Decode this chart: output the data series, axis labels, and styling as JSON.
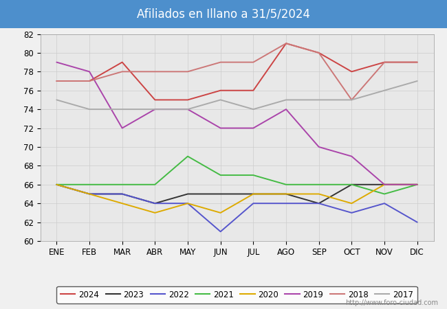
{
  "title": "Afiliados en Illano a 31/5/2024",
  "title_bg": "#4d8fcc",
  "title_color": "white",
  "ylim": [
    60,
    82
  ],
  "yticks": [
    60,
    62,
    64,
    66,
    68,
    70,
    72,
    74,
    76,
    78,
    80,
    82
  ],
  "months": [
    "ENE",
    "FEB",
    "MAR",
    "ABR",
    "MAY",
    "JUN",
    "JUL",
    "AGO",
    "SEP",
    "OCT",
    "NOV",
    "DIC"
  ],
  "series": {
    "2024": {
      "color": "#cc4444",
      "data": [
        77,
        77,
        79,
        75,
        75,
        76,
        76,
        81,
        80,
        78,
        79,
        79
      ]
    },
    "2023": {
      "color": "#333333",
      "data": [
        66,
        65,
        65,
        64,
        65,
        65,
        65,
        65,
        64,
        66,
        66,
        66
      ]
    },
    "2022": {
      "color": "#5555cc",
      "data": [
        66,
        65,
        65,
        64,
        64,
        61,
        64,
        64,
        64,
        63,
        64,
        62
      ]
    },
    "2021": {
      "color": "#44bb44",
      "data": [
        66,
        66,
        66,
        66,
        69,
        67,
        67,
        66,
        66,
        66,
        65,
        66
      ]
    },
    "2020": {
      "color": "#ddaa00",
      "data": [
        66,
        65,
        64,
        63,
        64,
        63,
        65,
        65,
        65,
        64,
        66,
        66
      ]
    },
    "2019": {
      "color": "#aa44aa",
      "data": [
        79,
        78,
        72,
        74,
        74,
        72,
        72,
        74,
        70,
        69,
        66,
        66
      ]
    },
    "2018": {
      "color": "#cc7777",
      "data": [
        77,
        77,
        78,
        78,
        78,
        79,
        79,
        81,
        80,
        75,
        79,
        79
      ]
    },
    "2017": {
      "color": "#aaaaaa",
      "data": [
        75,
        74,
        74,
        74,
        74,
        75,
        74,
        75,
        75,
        75,
        76,
        77
      ]
    }
  },
  "legend_order": [
    "2024",
    "2023",
    "2022",
    "2021",
    "2020",
    "2019",
    "2018",
    "2017"
  ],
  "watermark": "http://www.foro-ciudad.com",
  "bg_color": "#f0f0f0",
  "plot_bg_color": "#e8e8e8"
}
